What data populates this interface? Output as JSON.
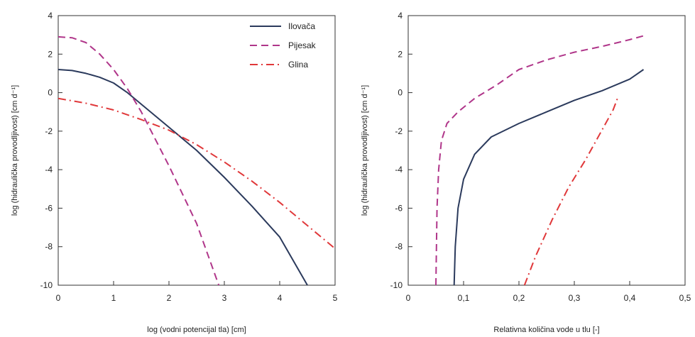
{
  "chart_data": [
    {
      "type": "line",
      "xlabel": "log (vodni potencijal tla) [cm]",
      "ylabel": "log (hidraulička provodljivost) [cm d⁻¹]",
      "xlim": [
        0,
        5
      ],
      "ylim": [
        -10,
        4
      ],
      "xticks": [
        "0",
        "1",
        "2",
        "3",
        "4",
        "5"
      ],
      "yticks": [
        "-10",
        "-8",
        "-6",
        "-4",
        "-2",
        "0",
        "2",
        "4"
      ],
      "grid": false,
      "legend": "top-right",
      "series": [
        {
          "name": "Ilovača",
          "color": "#2b3a5c",
          "style": "solid",
          "x": [
            0,
            0.25,
            0.5,
            0.75,
            1.0,
            1.25,
            1.5,
            1.75,
            2.0,
            2.5,
            3.0,
            3.5,
            4.0,
            4.5
          ],
          "y": [
            1.2,
            1.15,
            1.0,
            0.8,
            0.5,
            0.0,
            -0.6,
            -1.2,
            -1.8,
            -3.0,
            -4.4,
            -5.9,
            -7.5,
            -10.0
          ]
        },
        {
          "name": "Pijesak",
          "color": "#b0368a",
          "style": "dash",
          "x": [
            0,
            0.25,
            0.5,
            0.75,
            1.0,
            1.25,
            1.5,
            2.0,
            2.5,
            2.9
          ],
          "y": [
            2.9,
            2.85,
            2.6,
            2.0,
            1.2,
            0.2,
            -1.0,
            -3.8,
            -6.8,
            -10.0
          ]
        },
        {
          "name": "Glina",
          "color": "#e0383a",
          "style": "dashdot",
          "x": [
            0,
            0.5,
            1.0,
            1.5,
            2.0,
            2.5,
            3.0,
            3.5,
            4.0,
            4.5,
            5.0
          ],
          "y": [
            -0.3,
            -0.55,
            -0.9,
            -1.4,
            -1.95,
            -2.7,
            -3.6,
            -4.6,
            -5.7,
            -6.9,
            -8.1
          ]
        }
      ]
    },
    {
      "type": "line",
      "xlabel": "Relativna količina vode u tlu [-]",
      "ylabel": "log (hidraulička provodljivost) [cm d⁻¹]",
      "xlim": [
        0,
        0.5
      ],
      "ylim": [
        -10,
        4
      ],
      "xticks": [
        "0",
        "0,1",
        "0,2",
        "0,3",
        "0,4",
        "0,5"
      ],
      "yticks": [
        "-10",
        "-8",
        "-6",
        "-4",
        "-2",
        "0",
        "2",
        "4"
      ],
      "grid": false,
      "series": [
        {
          "name": "Ilovača",
          "color": "#2b3a5c",
          "style": "solid",
          "x": [
            0.083,
            0.085,
            0.09,
            0.1,
            0.12,
            0.15,
            0.2,
            0.25,
            0.3,
            0.35,
            0.4,
            0.425
          ],
          "y": [
            -10.0,
            -8.0,
            -6.0,
            -4.5,
            -3.2,
            -2.3,
            -1.6,
            -1.0,
            -0.4,
            0.1,
            0.7,
            1.2
          ]
        },
        {
          "name": "Pijesak",
          "color": "#b0368a",
          "style": "dash",
          "x": [
            0.05,
            0.052,
            0.055,
            0.06,
            0.07,
            0.09,
            0.12,
            0.16,
            0.2,
            0.25,
            0.3,
            0.35,
            0.4,
            0.425
          ],
          "y": [
            -10.0,
            -6.0,
            -4.0,
            -2.5,
            -1.6,
            -1.0,
            -0.3,
            0.4,
            1.2,
            1.7,
            2.1,
            2.4,
            2.75,
            2.95
          ]
        },
        {
          "name": "Glina",
          "color": "#e0383a",
          "style": "dashdot",
          "x": [
            0.21,
            0.23,
            0.26,
            0.29,
            0.32,
            0.345,
            0.37,
            0.378
          ],
          "y": [
            -10.0,
            -8.5,
            -6.6,
            -4.9,
            -3.5,
            -2.2,
            -0.9,
            -0.3
          ]
        }
      ]
    }
  ]
}
